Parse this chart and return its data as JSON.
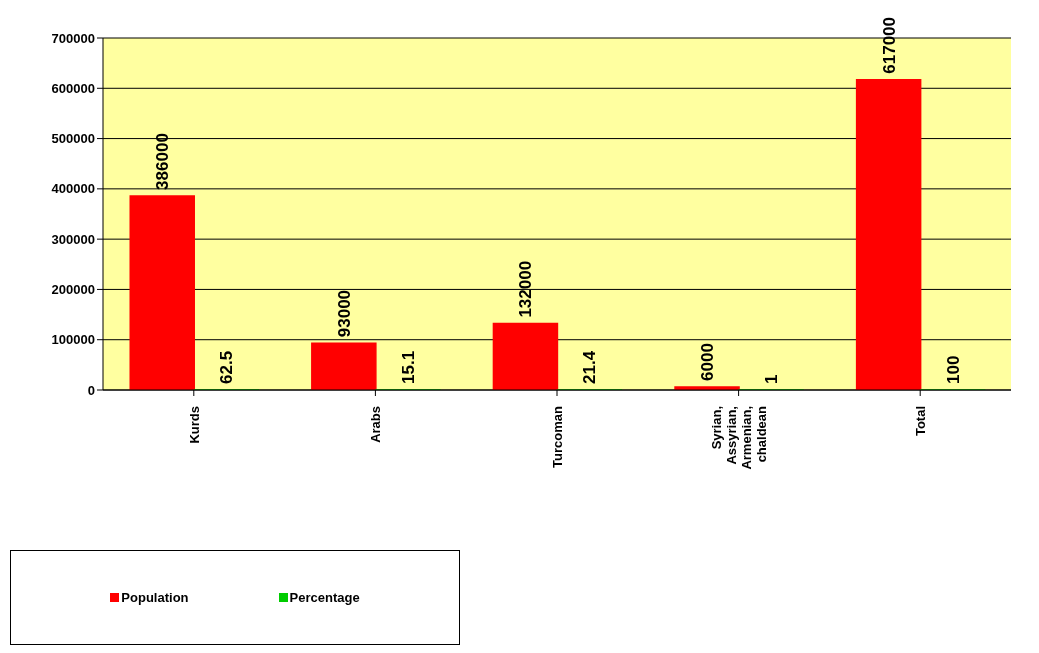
{
  "chart_data": {
    "type": "bar",
    "categories": [
      "Kurds",
      "Arabs",
      "Turcoman",
      "Syrian, Assyrian, Armenian, chaldean",
      "Total"
    ],
    "series": [
      {
        "name": "Population",
        "color": "#ff0000",
        "values": [
          386000,
          93000,
          132000,
          6000,
          617000
        ]
      },
      {
        "name": "Percentage",
        "color": "#00cc00",
        "values": [
          62.5,
          15.1,
          21.4,
          1,
          100
        ]
      }
    ],
    "ylim": [
      0,
      700000
    ],
    "yticks": [
      0,
      100000,
      200000,
      300000,
      400000,
      500000,
      600000,
      700000
    ],
    "grid": "y",
    "legend": "bottom left",
    "data_labels": true
  }
}
